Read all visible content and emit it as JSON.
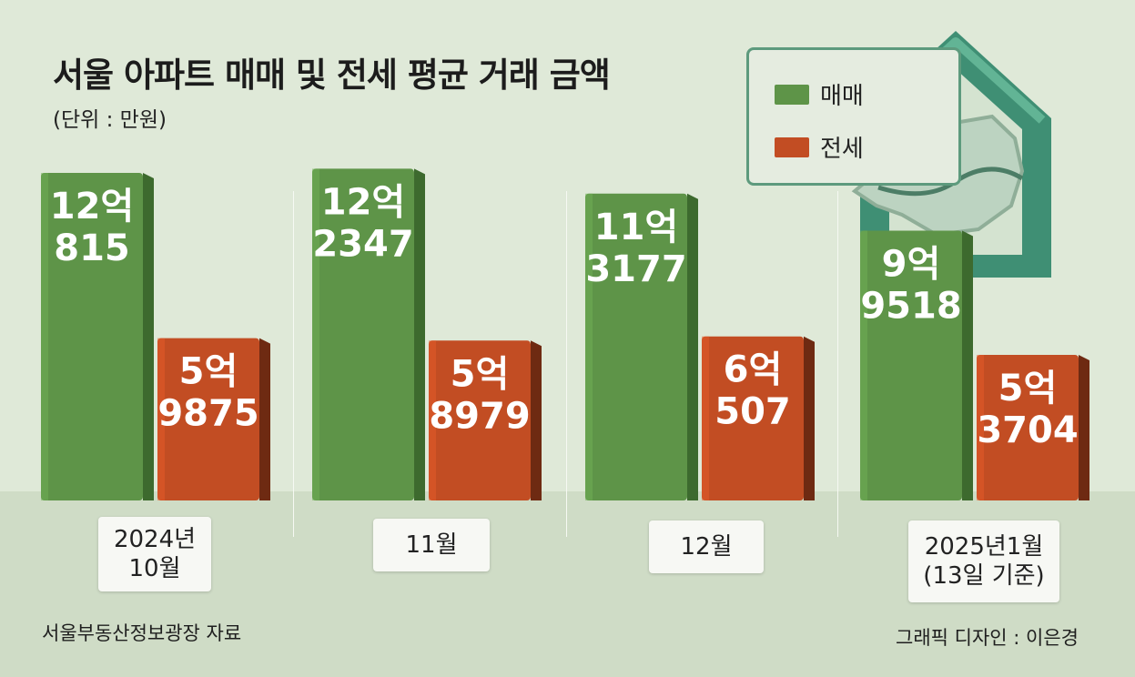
{
  "title": "서울 아파트 매매 및 전세 평균 거래 금액",
  "unit": "(단위 : 만원)",
  "source": "서울부동산정보광장 자료",
  "credit": "그래픽 디자인 : 이은경",
  "colors": {
    "sale": "#5e9448",
    "jeonse": "#c24d23",
    "background": "#dfe9d8"
  },
  "legend": {
    "sale": "매매",
    "jeonse": "전세"
  },
  "chart_data": {
    "type": "bar",
    "categories": [
      "2024년\n10월",
      "11월",
      "12월",
      "2025년1월\n(13일 기준)"
    ],
    "series": [
      {
        "name": "매매",
        "values": [
          120815,
          122347,
          113177,
          99518
        ],
        "labels": [
          [
            "12억",
            "815"
          ],
          [
            "12억",
            "2347"
          ],
          [
            "11억",
            "3177"
          ],
          [
            "9억",
            "9518"
          ]
        ]
      },
      {
        "name": "전세",
        "values": [
          59875,
          58979,
          60507,
          53704
        ],
        "labels": [
          [
            "5억",
            "9875"
          ],
          [
            "5억",
            "8979"
          ],
          [
            "6억",
            "507"
          ],
          [
            "5억",
            "3704"
          ]
        ]
      }
    ],
    "ylabel": "",
    "xlabel": "",
    "ylim": [
      0,
      125000
    ],
    "grid": false,
    "legend_position": "top-right"
  }
}
